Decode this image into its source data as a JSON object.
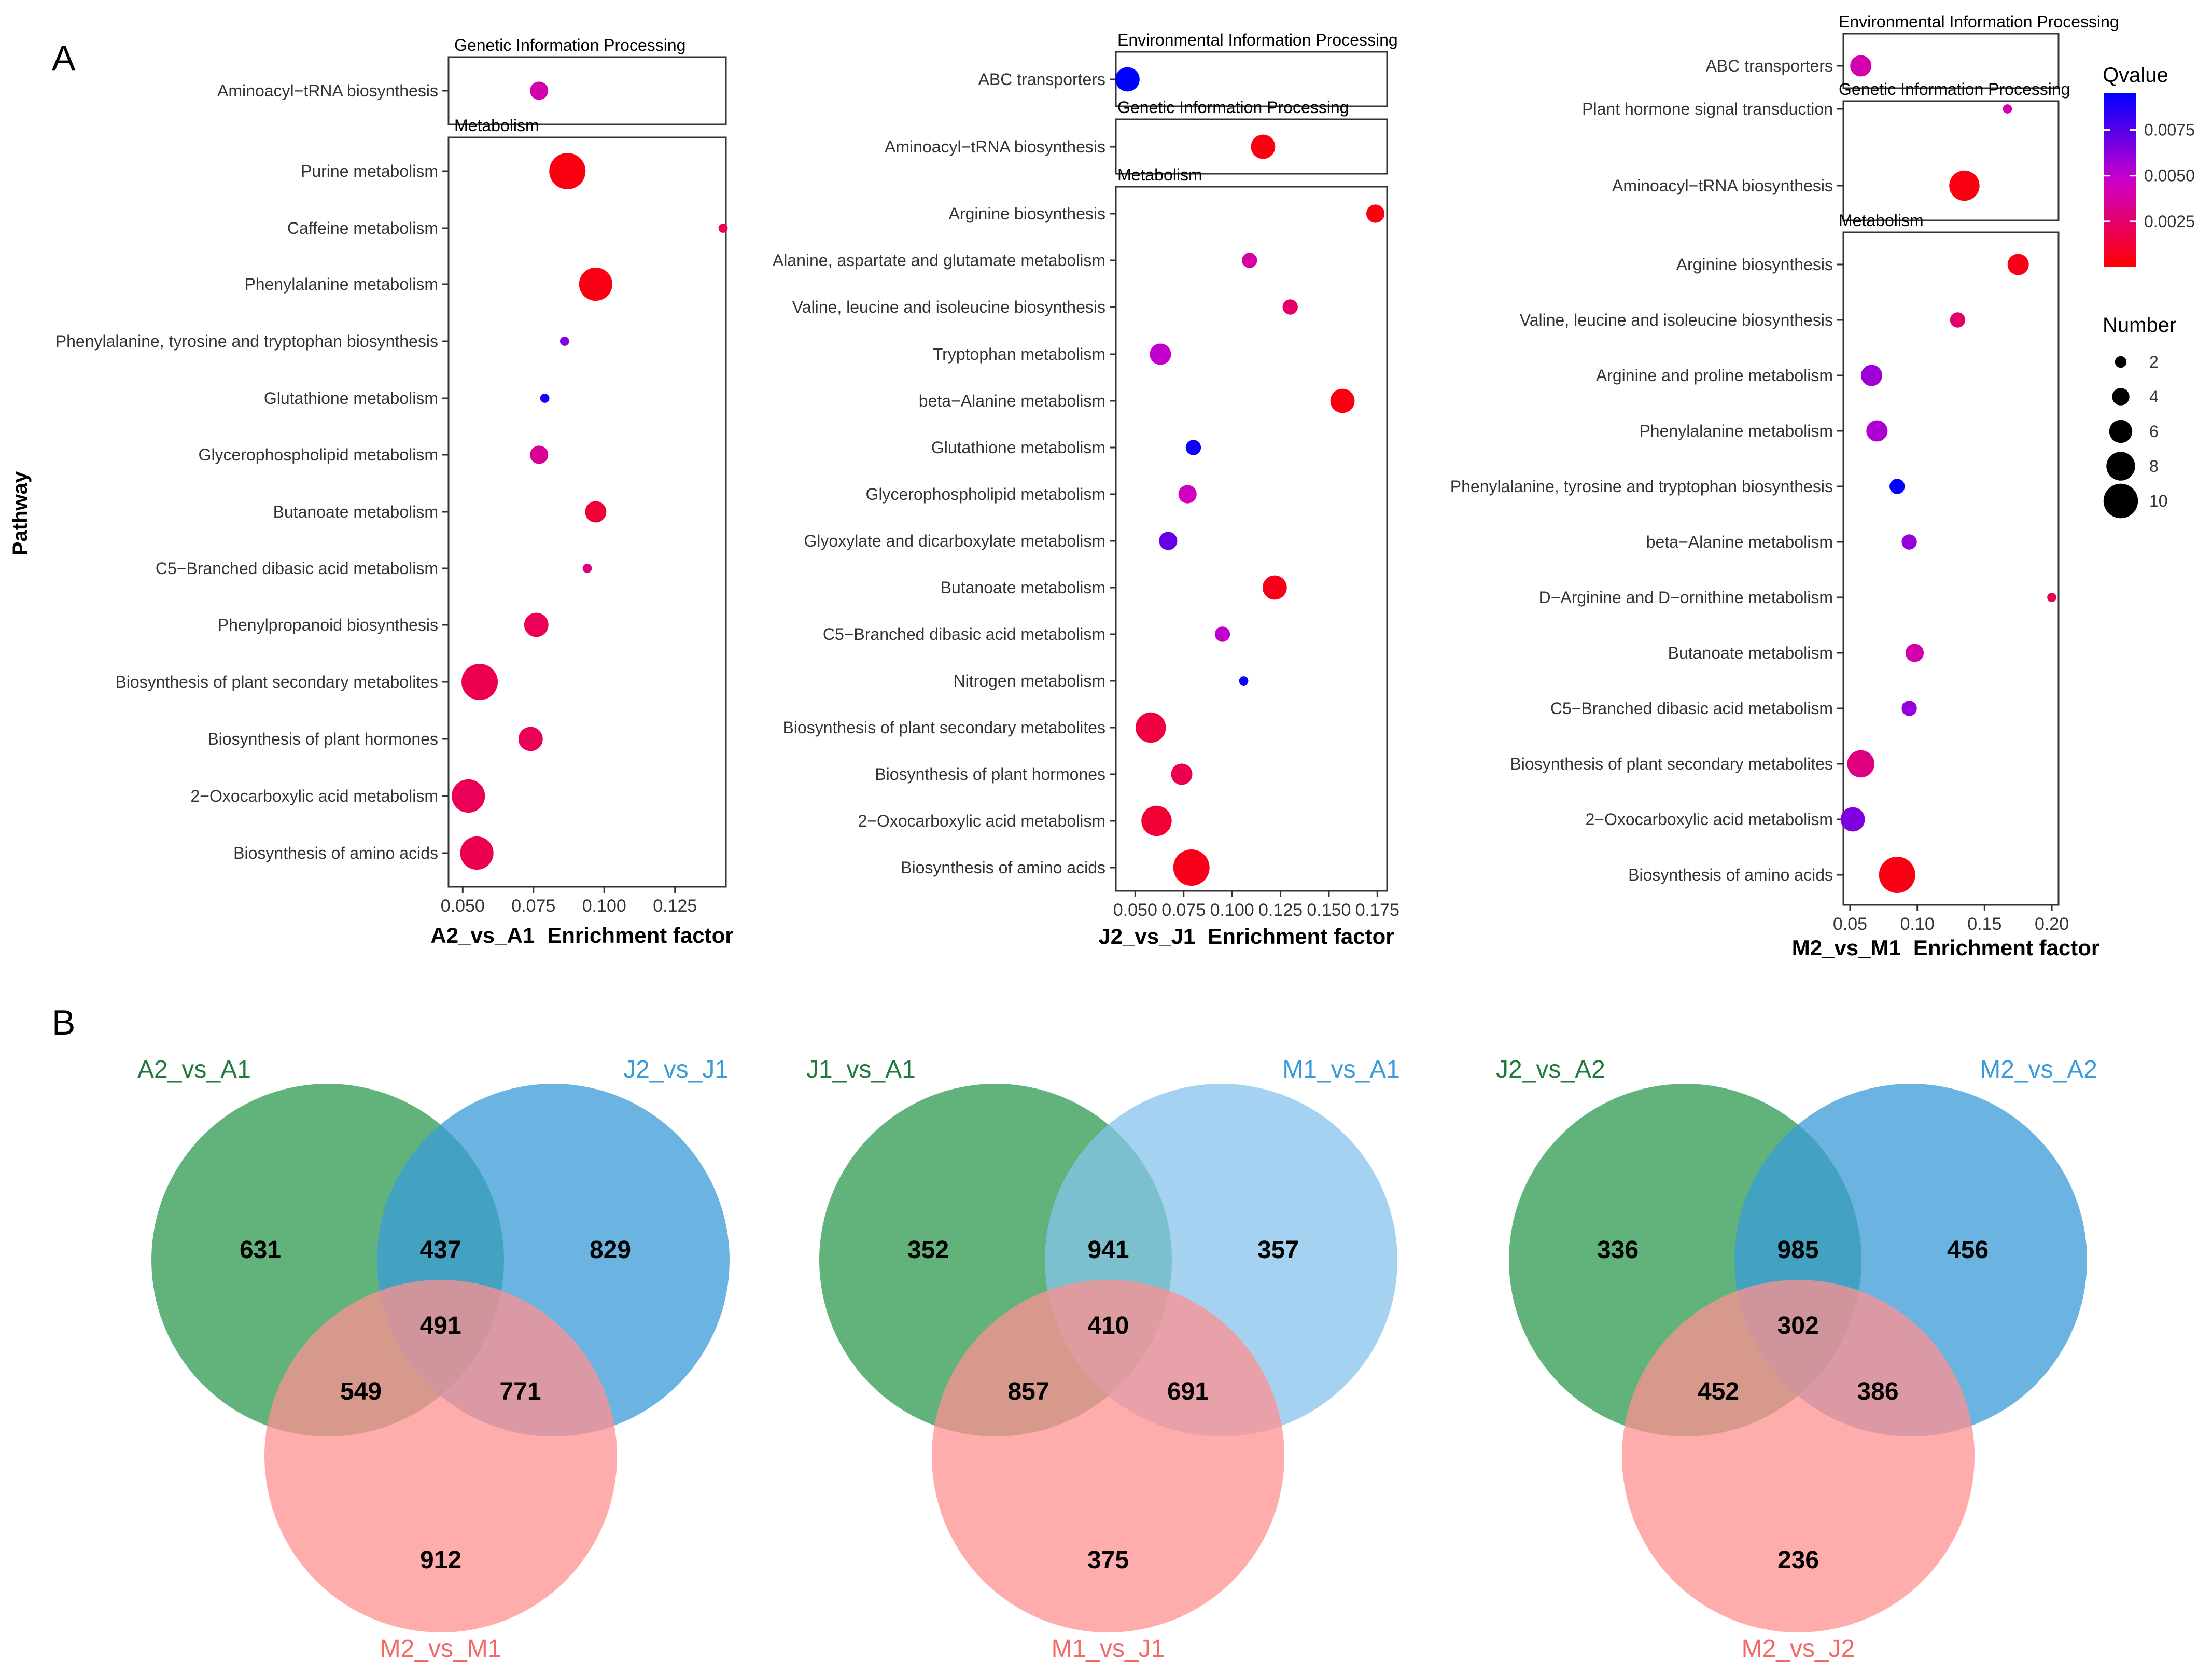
{
  "panel_labels": {
    "a": "A",
    "b": "B"
  },
  "y_axis_title": "Pathway",
  "legend": {
    "qvalue_title": "Qvalue",
    "qvalue_ticks": [
      {
        "label": "0.0075",
        "value": 0.0075
      },
      {
        "label": "0.0050",
        "value": 0.005
      },
      {
        "label": "0.0025",
        "value": 0.0025
      }
    ],
    "qvalue_range": [
      0.0,
      0.0095
    ],
    "number_title": "Number",
    "number_entries": [
      {
        "label": "2",
        "value": 2
      },
      {
        "label": "4",
        "value": 4
      },
      {
        "label": "6",
        "value": 6
      },
      {
        "label": "8",
        "value": 8
      },
      {
        "label": "10",
        "value": 10
      }
    ],
    "colors": {
      "low": "#ff0000",
      "mid": "#cc00cc",
      "high": "#0000ff"
    }
  },
  "chart_data": [
    {
      "type": "scatter",
      "comparison": "A2_vs_A1",
      "xlabel": "Enrichment factor",
      "xlim": [
        0.045,
        0.143
      ],
      "xticks": [
        {
          "label": "0.050",
          "value": 0.05
        },
        {
          "label": "0.075",
          "value": 0.075
        },
        {
          "label": "0.100",
          "value": 0.1
        },
        {
          "label": "0.125",
          "value": 0.125
        }
      ],
      "groups": [
        {
          "title": "Genetic Information Processing",
          "points": [
            {
              "pathway": "Aminoacyl−tRNA biosynthesis",
              "x": 0.077,
              "number": 4,
              "q": 0.004
            }
          ]
        },
        {
          "title": "Metabolism",
          "points": [
            {
              "pathway": "Purine metabolism",
              "x": 0.087,
              "number": 10,
              "q": 0.0004
            },
            {
              "pathway": "Caffeine metabolism",
              "x": 0.142,
              "number": 1,
              "q": 0.002
            },
            {
              "pathway": "Phenylalanine metabolism",
              "x": 0.097,
              "number": 9,
              "q": 0.0005
            },
            {
              "pathway": "Phenylalanine, tyrosine and tryptophan biosynthesis",
              "x": 0.086,
              "number": 1,
              "q": 0.0065
            },
            {
              "pathway": "Glutathione metabolism",
              "x": 0.079,
              "number": 1,
              "q": 0.009
            },
            {
              "pathway": "Glycerophospholipid metabolism",
              "x": 0.077,
              "number": 4,
              "q": 0.0035
            },
            {
              "pathway": "Butanoate metabolism",
              "x": 0.097,
              "number": 5,
              "q": 0.0012
            },
            {
              "pathway": "C5−Branched dibasic acid metabolism",
              "x": 0.094,
              "number": 1,
              "q": 0.003
            },
            {
              "pathway": "Phenylpropanoid biosynthesis",
              "x": 0.076,
              "number": 6,
              "q": 0.002
            },
            {
              "pathway": "Biosynthesis of plant secondary metabolites",
              "x": 0.056,
              "number": 10,
              "q": 0.0018
            },
            {
              "pathway": "Biosynthesis of plant hormones",
              "x": 0.074,
              "number": 6,
              "q": 0.002
            },
            {
              "pathway": "2−Oxocarboxylic acid metabolism",
              "x": 0.052,
              "number": 9,
              "q": 0.002
            },
            {
              "pathway": "Biosynthesis of amino acids",
              "x": 0.055,
              "number": 9,
              "q": 0.0018
            }
          ]
        }
      ]
    },
    {
      "type": "scatter",
      "comparison": "J2_vs_J1",
      "xlabel": "Enrichment factor",
      "xlim": [
        0.04,
        0.18
      ],
      "xticks": [
        {
          "label": "0.050",
          "value": 0.05
        },
        {
          "label": "0.075",
          "value": 0.075
        },
        {
          "label": "0.100",
          "value": 0.1
        },
        {
          "label": "0.125",
          "value": 0.125
        },
        {
          "label": "0.150",
          "value": 0.15
        },
        {
          "label": "0.175",
          "value": 0.175
        }
      ],
      "groups": [
        {
          "title": "Environmental Information Processing",
          "points": [
            {
              "pathway": "ABC transporters",
              "x": 0.046,
              "number": 6,
              "q": 0.0095
            }
          ]
        },
        {
          "title": "Genetic Information Processing",
          "points": [
            {
              "pathway": "Aminoacyl−tRNA biosynthesis",
              "x": 0.116,
              "number": 6,
              "q": 0.0004
            }
          ]
        },
        {
          "title": "Metabolism",
          "points": [
            {
              "pathway": "Arginine biosynthesis",
              "x": 0.174,
              "number": 4,
              "q": 0.0003
            },
            {
              "pathway": "Alanine, aspartate and glutamate metabolism",
              "x": 0.109,
              "number": 3,
              "q": 0.0038
            },
            {
              "pathway": "Valine, leucine and isoleucine biosynthesis",
              "x": 0.13,
              "number": 3,
              "q": 0.0025
            },
            {
              "pathway": "Tryptophan metabolism",
              "x": 0.063,
              "number": 5,
              "q": 0.005
            },
            {
              "pathway": "beta−Alanine metabolism",
              "x": 0.157,
              "number": 6,
              "q": 0.0004
            },
            {
              "pathway": "Glutathione metabolism",
              "x": 0.08,
              "number": 3,
              "q": 0.0092
            },
            {
              "pathway": "Glycerophospholipid metabolism",
              "x": 0.077,
              "number": 4,
              "q": 0.0045
            },
            {
              "pathway": "Glyoxylate and dicarboxylate metabolism",
              "x": 0.067,
              "number": 4,
              "q": 0.0072
            },
            {
              "pathway": "Butanoate metabolism",
              "x": 0.122,
              "number": 6,
              "q": 0.0006
            },
            {
              "pathway": "C5−Branched dibasic acid metabolism",
              "x": 0.095,
              "number": 3,
              "q": 0.005
            },
            {
              "pathway": "Nitrogen metabolism",
              "x": 0.106,
              "number": 1,
              "q": 0.0092
            },
            {
              "pathway": "Biosynthesis of plant secondary metabolites",
              "x": 0.058,
              "number": 8,
              "q": 0.0015
            },
            {
              "pathway": "Biosynthesis of plant hormones",
              "x": 0.074,
              "number": 5,
              "q": 0.0018
            },
            {
              "pathway": "2−Oxocarboxylic acid metabolism",
              "x": 0.061,
              "number": 8,
              "q": 0.0012
            },
            {
              "pathway": "Biosynthesis of amino acids",
              "x": 0.079,
              "number": 10,
              "q": 0.0006
            }
          ]
        }
      ]
    },
    {
      "type": "scatter",
      "comparison": "M2_vs_M1",
      "xlabel": "Enrichment factor",
      "xlim": [
        0.045,
        0.205
      ],
      "xticks": [
        {
          "label": "0.05",
          "value": 0.05
        },
        {
          "label": "0.10",
          "value": 0.1
        },
        {
          "label": "0.15",
          "value": 0.15
        },
        {
          "label": "0.20",
          "value": 0.2
        }
      ],
      "groups": [
        {
          "title": "Environmental Information Processing",
          "points": [
            {
              "pathway": "ABC transporters",
              "x": 0.058,
              "number": 5,
              "q": 0.004
            },
            {
              "pathway": "Plant hormone signal transduction",
              "x": 0.167,
              "number": 1,
              "q": 0.004
            }
          ]
        },
        {
          "title": "Genetic Information Processing",
          "points": [
            {
              "pathway": "Aminoacyl−tRNA biosynthesis",
              "x": 0.135,
              "number": 8,
              "q": 0.0004
            }
          ]
        },
        {
          "title": "Metabolism",
          "points": [
            {
              "pathway": "Arginine biosynthesis",
              "x": 0.175,
              "number": 5,
              "q": 0.0006
            },
            {
              "pathway": "Valine, leucine and isoleucine biosynthesis",
              "x": 0.13,
              "number": 3,
              "q": 0.0025
            },
            {
              "pathway": "Arginine and proline metabolism",
              "x": 0.066,
              "number": 5,
              "q": 0.0058
            },
            {
              "pathway": "Phenylalanine metabolism",
              "x": 0.07,
              "number": 5,
              "q": 0.0055
            },
            {
              "pathway": "Phenylalanine, tyrosine and tryptophan biosynthesis",
              "x": 0.085,
              "number": 3,
              "q": 0.0095
            },
            {
              "pathway": "beta−Alanine metabolism",
              "x": 0.094,
              "number": 3,
              "q": 0.006
            },
            {
              "pathway": "D−Arginine and D−ornithine metabolism",
              "x": 0.2,
              "number": 1,
              "q": 0.002
            },
            {
              "pathway": "Butanoate metabolism",
              "x": 0.098,
              "number": 4,
              "q": 0.004
            },
            {
              "pathway": "C5−Branched dibasic acid metabolism",
              "x": 0.094,
              "number": 3,
              "q": 0.006
            },
            {
              "pathway": "Biosynthesis of plant secondary metabolites",
              "x": 0.058,
              "number": 7,
              "q": 0.003
            },
            {
              "pathway": "2−Oxocarboxylic acid metabolism",
              "x": 0.052,
              "number": 6,
              "q": 0.0065
            },
            {
              "pathway": "Biosynthesis of amino acids",
              "x": 0.085,
              "number": 10,
              "q": 0.0005
            }
          ]
        }
      ]
    },
    {
      "type": "venn",
      "sets": [
        {
          "name": "A2_vs_A1",
          "color": "#2e9a4f",
          "label_color": "#1f7a3c"
        },
        {
          "name": "J2_vs_J1",
          "color": "#3a9bd8",
          "label_color": "#3a9bd8"
        },
        {
          "name": "M2_vs_M1",
          "color": "#ff9090",
          "label_color": "#f06a6a"
        }
      ],
      "regions": {
        "only_1": 631,
        "only_2": 829,
        "only_3": 912,
        "r12": 437,
        "r13": 549,
        "r23": 771,
        "r123": 491
      }
    },
    {
      "type": "venn",
      "sets": [
        {
          "name": "J1_vs_A1",
          "color": "#2e9a4f",
          "label_color": "#1f7a3c"
        },
        {
          "name": "M1_vs_A1",
          "color": "#86c3eb",
          "label_color": "#3a9bd8"
        },
        {
          "name": "M1_vs_J1",
          "color": "#ff9090",
          "label_color": "#f06a6a"
        }
      ],
      "regions": {
        "only_1": 352,
        "only_2": 357,
        "only_3": 375,
        "r12": 941,
        "r13": 857,
        "r23": 691,
        "r123": 410
      }
    },
    {
      "type": "venn",
      "sets": [
        {
          "name": "J2_vs_A2",
          "color": "#2e9a4f",
          "label_color": "#1f7a3c"
        },
        {
          "name": "M2_vs_A2",
          "color": "#3a9bd8",
          "label_color": "#3a9bd8"
        },
        {
          "name": "M2_vs_J2",
          "color": "#ff9090",
          "label_color": "#f06a6a"
        }
      ],
      "regions": {
        "only_1": 336,
        "only_2": 456,
        "only_3": 236,
        "r12": 985,
        "r13": 452,
        "r23": 386,
        "r123": 302
      }
    }
  ]
}
